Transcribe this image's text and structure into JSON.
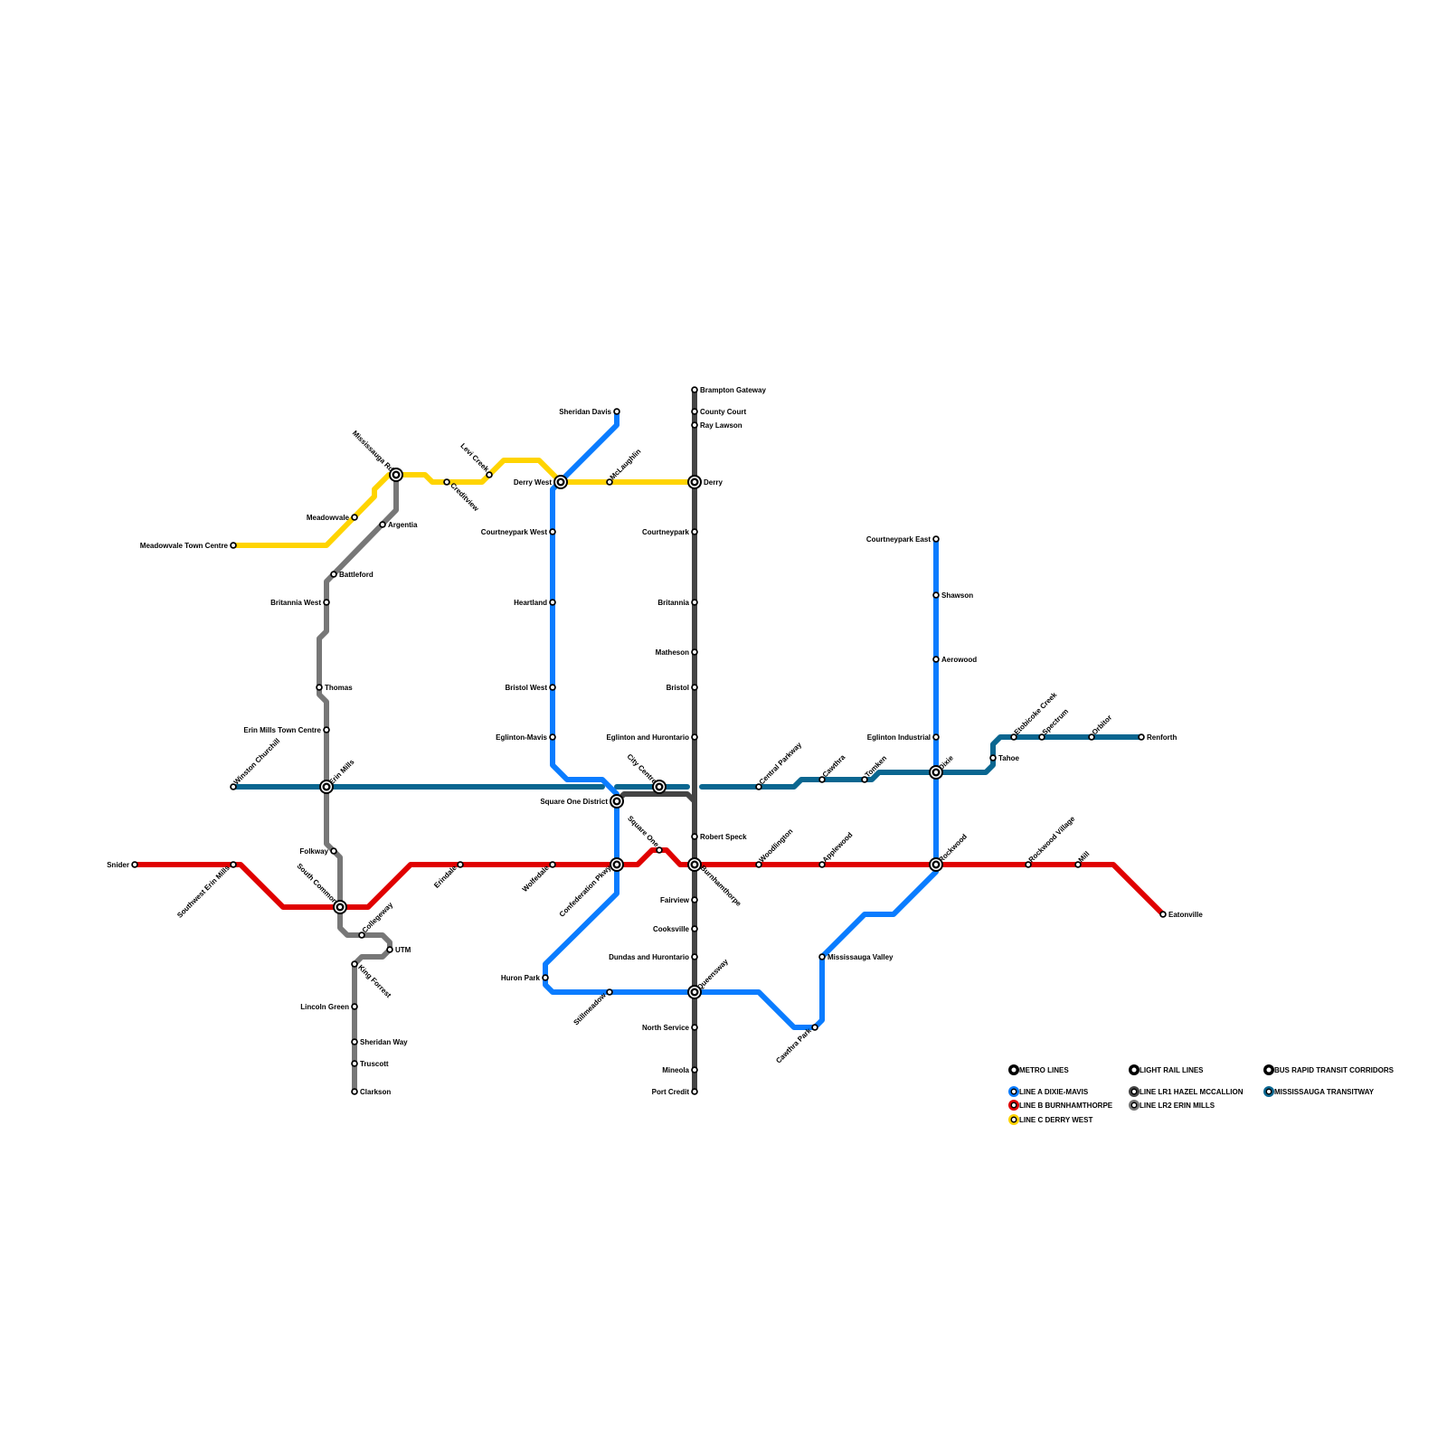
{
  "colors": {
    "line_a": "#0a7cff",
    "line_b": "#e00000",
    "line_c": "#ffd400",
    "lr1": "#444444",
    "lr2": "#777777",
    "transitway": "#0a6690"
  },
  "legend": {
    "metro_header": "METRO LINES",
    "line_a": "LINE A DIXIE-MAVIS",
    "line_b": "LINE B BURNHAMTHORPE",
    "line_c": "LINE C DERRY WEST",
    "lrt_header": "LIGHT RAIL LINES",
    "lr1": "LINE LR1 HAZEL MCCALLION",
    "lr2": "LINE LR2 ERIN MILLS",
    "brt_header": "BUS RAPID TRANSIT CORRIDORS",
    "transitway": "MISSISSAUGA TRANSITWAY"
  },
  "stations": [
    {
      "name": "Brampton Gateway"
    },
    {
      "name": "County Court"
    },
    {
      "name": "Ray Lawson"
    },
    {
      "name": "Derry",
      "interchange": true
    },
    {
      "name": "Courtneypark"
    },
    {
      "name": "Britannia"
    },
    {
      "name": "Matheson"
    },
    {
      "name": "Bristol"
    },
    {
      "name": "Eglinton and Hurontario"
    },
    {
      "name": "Robert Speck"
    },
    {
      "name": "Burnhamthorpe",
      "interchange": true
    },
    {
      "name": "Fairview"
    },
    {
      "name": "Cooksville"
    },
    {
      "name": "Dundas and Hurontario"
    },
    {
      "name": "Queensway",
      "interchange": true
    },
    {
      "name": "North Service"
    },
    {
      "name": "Mineola"
    },
    {
      "name": "Port Credit"
    },
    {
      "name": "City Centre",
      "interchange": true
    },
    {
      "name": "Square One District",
      "interchange": true
    },
    {
      "name": "Square One"
    },
    {
      "name": "Sheridan Davis"
    },
    {
      "name": "Derry West",
      "interchange": true
    },
    {
      "name": "Courtneypark West"
    },
    {
      "name": "Heartland"
    },
    {
      "name": "Bristol West"
    },
    {
      "name": "Eglinton-Mavis"
    },
    {
      "name": "Confederation Pkwy",
      "interchange": true
    },
    {
      "name": "Huron Park"
    },
    {
      "name": "Stillmeadow"
    },
    {
      "name": "Cawthra Park"
    },
    {
      "name": "Mississauga Valley"
    },
    {
      "name": "Rockwood",
      "interchange": true
    },
    {
      "name": "Dixie",
      "interchange": true
    },
    {
      "name": "Eglinton Industrial"
    },
    {
      "name": "Aerowood"
    },
    {
      "name": "Shawson"
    },
    {
      "name": "Courtneypark East"
    },
    {
      "name": "Snider"
    },
    {
      "name": "Southwest Erin Mills"
    },
    {
      "name": "South Common",
      "interchange": true
    },
    {
      "name": "Erindale"
    },
    {
      "name": "Wolfedale"
    },
    {
      "name": "Woodlington"
    },
    {
      "name": "Applewood"
    },
    {
      "name": "Rockwood Village"
    },
    {
      "name": "Mill"
    },
    {
      "name": "Eatonville"
    },
    {
      "name": "Meadowvale Town Centre"
    },
    {
      "name": "Meadowvale"
    },
    {
      "name": "Mississauga Rd",
      "interchange": true
    },
    {
      "name": "Creditview"
    },
    {
      "name": "Levi Creek"
    },
    {
      "name": "McLaughlin"
    },
    {
      "name": "Argentia"
    },
    {
      "name": "Battleford"
    },
    {
      "name": "Britannia West"
    },
    {
      "name": "Thomas"
    },
    {
      "name": "Erin Mills Town Centre"
    },
    {
      "name": "Erin Mills",
      "interchange": true
    },
    {
      "name": "Folkway"
    },
    {
      "name": "Collegeway"
    },
    {
      "name": "UTM"
    },
    {
      "name": "King Forrest"
    },
    {
      "name": "Lincoln Green"
    },
    {
      "name": "Sheridan Way"
    },
    {
      "name": "Truscott"
    },
    {
      "name": "Clarkson"
    },
    {
      "name": "Winston Churchill"
    },
    {
      "name": "Central Parkway"
    },
    {
      "name": "Cawthra"
    },
    {
      "name": "Tomken"
    },
    {
      "name": "Tahoe"
    },
    {
      "name": "Etobicoke Creek"
    },
    {
      "name": "Spectrum"
    },
    {
      "name": "Orbitor"
    },
    {
      "name": "Renforth"
    }
  ]
}
